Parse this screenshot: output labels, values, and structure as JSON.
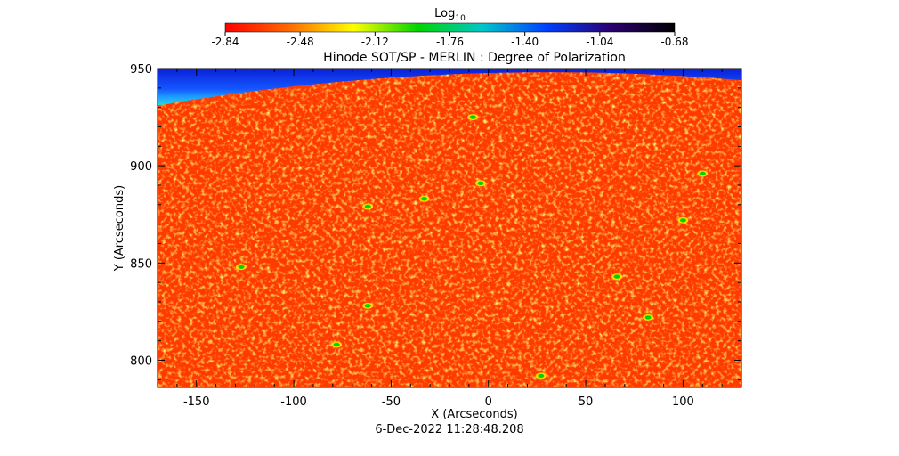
{
  "chart_data": {
    "type": "heatmap",
    "title": "Hinode SOT/SP - MERLIN : Degree of Polarization",
    "xlabel": "X (Arcseconds)",
    "ylabel": "Y (Arcseconds)",
    "timestamp": "6-Dec-2022 11:28:48.208",
    "xlim": [
      -170,
      130
    ],
    "ylim": [
      786,
      950
    ],
    "xticks": [
      -150,
      -100,
      -50,
      0,
      50,
      100
    ],
    "xtick_labels": [
      "-150",
      "-100",
      "-50",
      "0",
      "50",
      "100"
    ],
    "yticks": [
      800,
      850,
      900,
      950
    ],
    "ytick_labels": [
      "800",
      "850",
      "900",
      "950"
    ],
    "colorbar": {
      "label_base": "Log",
      "label_sub": "10",
      "range": [
        -2.84,
        -0.68
      ],
      "ticks": [
        -2.84,
        -2.48,
        -2.12,
        -1.76,
        -1.4,
        -1.04,
        -0.68
      ],
      "tick_labels": [
        "-2.84",
        "-2.48",
        "-2.12",
        "-1.76",
        "-1.40",
        "-1.04",
        "-0.68"
      ],
      "colormap": [
        "#ff0000",
        "#ff6a00",
        "#ffff00",
        "#00d400",
        "#00c8c8",
        "#0040ff",
        "#2a0070",
        "#000000"
      ]
    },
    "field_summary": {
      "disk_typical_value": -2.65,
      "limb_off_disk_value": -1.1,
      "limb_y_at_left_edge": 931,
      "limb_y_at_center": 947,
      "limb_y_at_right_edge": 944,
      "magnetic_patches": [
        {
          "x": -127,
          "y": 848,
          "value": -1.9
        },
        {
          "x": -62,
          "y": 828,
          "value": -1.9
        },
        {
          "x": -62,
          "y": 879,
          "value": -1.95
        },
        {
          "x": 27,
          "y": 792,
          "value": -1.85
        },
        {
          "x": 110,
          "y": 896,
          "value": -1.9
        },
        {
          "x": 66,
          "y": 843,
          "value": -1.85
        },
        {
          "x": -33,
          "y": 883,
          "value": -2.0
        },
        {
          "x": -4,
          "y": 891,
          "value": -2.0
        },
        {
          "x": -8,
          "y": 925,
          "value": -2.0
        },
        {
          "x": 100,
          "y": 872,
          "value": -2.0
        },
        {
          "x": 82,
          "y": 822,
          "value": -2.0
        },
        {
          "x": -78,
          "y": 808,
          "value": -2.0
        }
      ]
    }
  }
}
